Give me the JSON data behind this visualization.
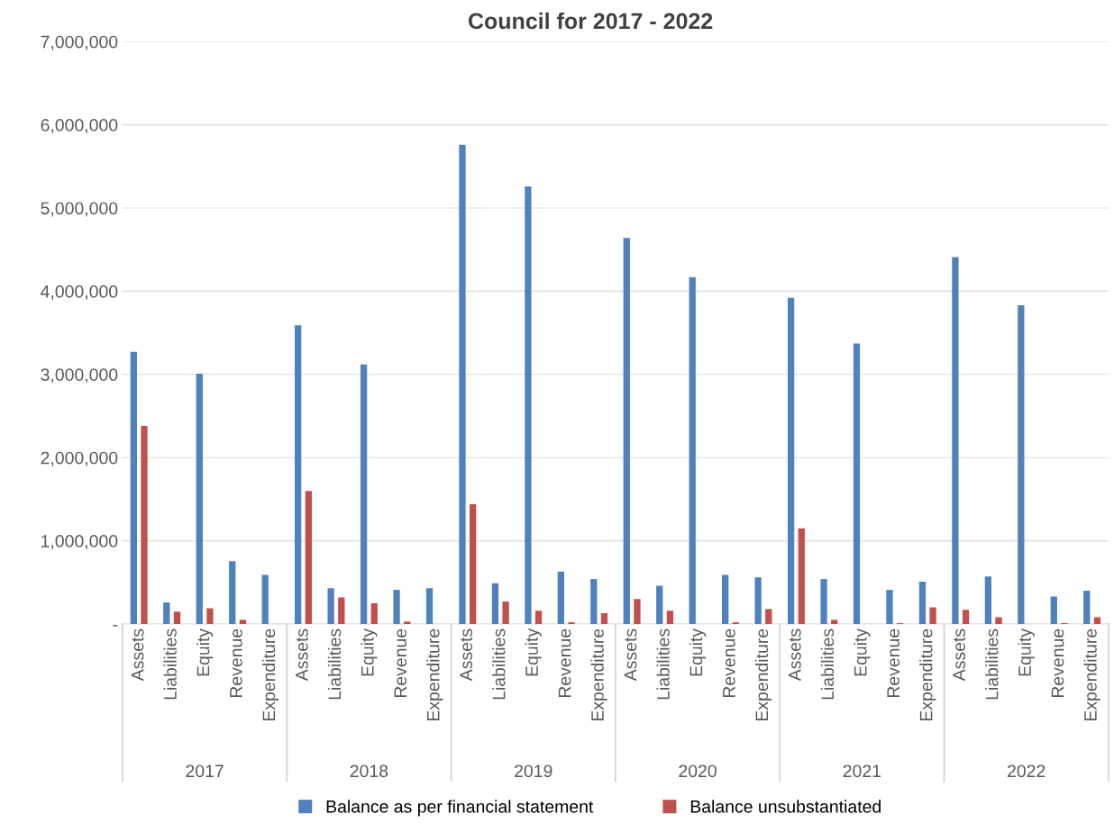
{
  "chart_data": {
    "type": "bar",
    "title": "Council for 2017 - 2022",
    "categories": [
      "Assets",
      "Liabilities",
      "Equity",
      "Revenue",
      "Expenditure",
      "Assets",
      "Liabilities",
      "Equity",
      "Revenue",
      "Expenditure",
      "Assets",
      "Liabilities",
      "Equity",
      "Revenue",
      "Expenditure",
      "Assets",
      "Liabilities",
      "Equity",
      "Revenue",
      "Expenditure",
      "Assets",
      "Liabilities",
      "Equity",
      "Revenue",
      "Expenditure",
      "Assets",
      "Liabilities",
      "Equity",
      "Revenue",
      "Expenditure"
    ],
    "series": [
      {
        "name": "Balance as per financial statement",
        "color": "#4f81bd",
        "values": [
          3270000,
          260000,
          3010000,
          755000,
          590000,
          3590000,
          430000,
          3120000,
          410000,
          430000,
          5760000,
          490000,
          5260000,
          630000,
          540000,
          4640000,
          460000,
          4170000,
          590000,
          560000,
          3920000,
          540000,
          3370000,
          410000,
          510000,
          4410000,
          570000,
          3830000,
          330000,
          400000
        ]
      },
      {
        "name": "Balance unsubstantiated",
        "color": "#c0504d",
        "values": [
          2380000,
          150000,
          190000,
          50000,
          0,
          1600000,
          320000,
          250000,
          30000,
          0,
          1440000,
          270000,
          160000,
          20000,
          130000,
          300000,
          160000,
          0,
          20000,
          180000,
          1150000,
          50000,
          0,
          10000,
          200000,
          170000,
          80000,
          0,
          10000,
          80000
        ]
      }
    ],
    "ylim": [
      0,
      7000000
    ],
    "yticks": [
      {
        "value": 0,
        "label": "-"
      },
      {
        "value": 1000000,
        "label": "1,000,000"
      },
      {
        "value": 2000000,
        "label": "2,000,000"
      },
      {
        "value": 3000000,
        "label": "3,000,000"
      },
      {
        "value": 4000000,
        "label": "4,000,000"
      },
      {
        "value": 5000000,
        "label": "5,000,000"
      },
      {
        "value": 6000000,
        "label": "6,000,000"
      },
      {
        "value": 7000000,
        "label": "7,000,000"
      }
    ],
    "annotations": [
      "2017",
      "2018",
      "2019",
      "2020",
      "2021",
      "2022"
    ],
    "grid": "y",
    "legend": "bottom"
  }
}
